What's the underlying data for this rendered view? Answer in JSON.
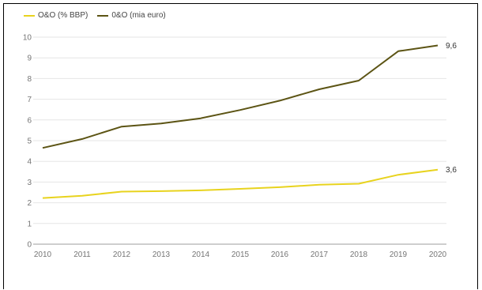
{
  "chart_data": {
    "type": "line",
    "x": [
      "2010",
      "2011",
      "2012",
      "2013",
      "2014",
      "2015",
      "2016",
      "2017",
      "2018",
      "2019",
      "2020"
    ],
    "ylim": [
      0,
      10
    ],
    "yticks": [
      "0",
      "1",
      "2",
      "3",
      "4",
      "5",
      "6",
      "7",
      "8",
      "9",
      "10"
    ],
    "grid": true,
    "legend_position": "top-left",
    "series": [
      {
        "name": "O&O (% BBP)",
        "color": "#e8d31e",
        "values": [
          2.23,
          2.34,
          2.54,
          2.56,
          2.6,
          2.67,
          2.75,
          2.87,
          2.92,
          3.35,
          3.6
        ],
        "end_label": "3,6"
      },
      {
        "name": "0&O (mia euro)",
        "color": "#5c5414",
        "values": [
          4.65,
          5.08,
          5.68,
          5.83,
          6.08,
          6.48,
          6.93,
          7.48,
          7.9,
          9.32,
          9.6
        ],
        "end_label": "9,6"
      }
    ]
  }
}
